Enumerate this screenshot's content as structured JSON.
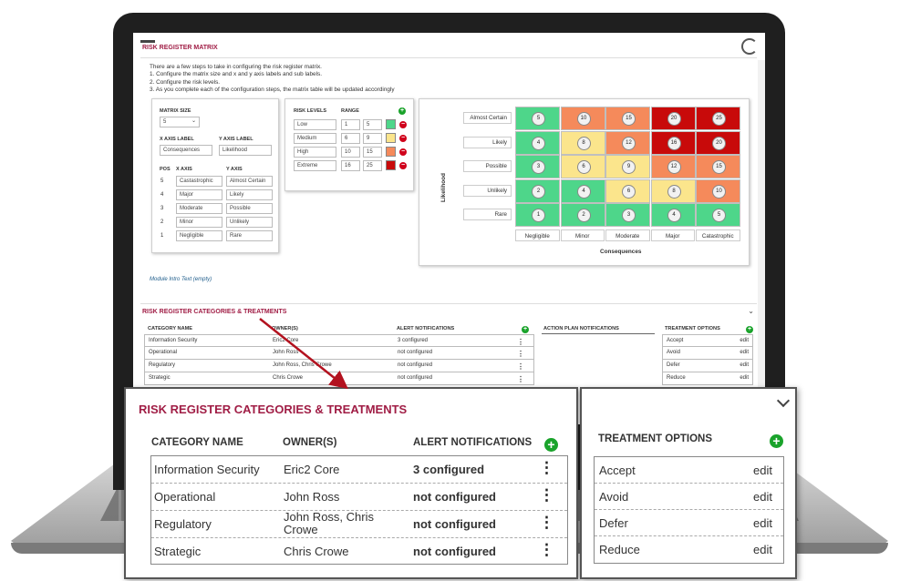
{
  "colors": {
    "accent": "#a01d45",
    "add": "#1aa32b",
    "remove": "#d0021b",
    "arrow": "#b3121f"
  },
  "matrix": {
    "title": "RISK REGISTER MATRIX",
    "intro": [
      "There are a few steps to take in configuring the risk register matrix.",
      "1. Configure the matrix size and x and y axis labels and sub labels.",
      "2. Configure the risk levels.",
      "3. As you complete each of the configuration steps, the matrix table will be updated accordingly"
    ],
    "size_label": "MATRIX SIZE",
    "size_value": "5",
    "x_axis_label": "X AXIS LABEL",
    "x_axis_value": "Consequences",
    "y_axis_label": "Y AXIS LABEL",
    "y_axis_value": "Likelihood",
    "pos_header": "POS",
    "x_header": "X AXIS",
    "y_header": "Y AXIS",
    "axis_rows": [
      {
        "pos": "5",
        "x": "Castastrophic",
        "y": "Almost Certain"
      },
      {
        "pos": "4",
        "x": "Major",
        "y": "Likely"
      },
      {
        "pos": "3",
        "x": "Moderate",
        "y": "Possible"
      },
      {
        "pos": "2",
        "x": "Minor",
        "y": "Unlikely"
      },
      {
        "pos": "1",
        "x": "Negligible",
        "y": "Rare"
      }
    ],
    "levels_header": "RISK LEVELS",
    "range_header": "RANGE",
    "levels": [
      {
        "name": "Low",
        "min": "1",
        "max": "5",
        "color": "#4ed68a"
      },
      {
        "name": "Medium",
        "min": "6",
        "max": "9",
        "color": "#fbe58c"
      },
      {
        "name": "High",
        "min": "10",
        "max": "15",
        "color": "#f58a5b"
      },
      {
        "name": "Extreme",
        "min": "16",
        "max": "25",
        "color": "#c80a0a"
      }
    ],
    "grid": {
      "y_title": "Likelihood",
      "x_title": "Consequences",
      "y_labels": [
        "Almost Certain",
        "Likely",
        "Possible",
        "Unlikely",
        "Rare"
      ],
      "x_labels": [
        "Negligible",
        "Minor",
        "Moderate",
        "Major",
        "Catastrophic"
      ],
      "rows": [
        [
          "5",
          "10",
          "15",
          "20",
          "25"
        ],
        [
          "4",
          "8",
          "12",
          "16",
          "20"
        ],
        [
          "3",
          "6",
          "9",
          "12",
          "15"
        ],
        [
          "2",
          "4",
          "6",
          "8",
          "10"
        ],
        [
          "1",
          "2",
          "3",
          "4",
          "5"
        ]
      ]
    },
    "module_intro": "Module Intro Text (empty)"
  },
  "categories": {
    "title": "RISK REGISTER CATEGORIES & TREATMENTS",
    "headers": {
      "name": "CATEGORY NAME",
      "owners": "OWNER(S)",
      "alerts": "ALERT NOTIFICATIONS",
      "action": "ACTION PLAN NOTIFICATIONS",
      "treatments": "TREATMENT OPTIONS"
    },
    "rows": [
      {
        "name": "Information Security",
        "owners": "Eric2 Core",
        "alerts": "3 configured"
      },
      {
        "name": "Operational",
        "owners": "John Ross",
        "alerts": "not configured"
      },
      {
        "name": "Regulatory",
        "owners": "John Ross, Chris Crowe",
        "alerts": "not configured"
      },
      {
        "name": "Strategic",
        "owners": "Chris Crowe",
        "alerts": "not configured"
      }
    ],
    "treatments": [
      "Accept",
      "Avoid",
      "Defer",
      "Reduce"
    ],
    "edit_label": "edit",
    "plus": "+",
    "minus": "−",
    "menu": "⋮"
  }
}
